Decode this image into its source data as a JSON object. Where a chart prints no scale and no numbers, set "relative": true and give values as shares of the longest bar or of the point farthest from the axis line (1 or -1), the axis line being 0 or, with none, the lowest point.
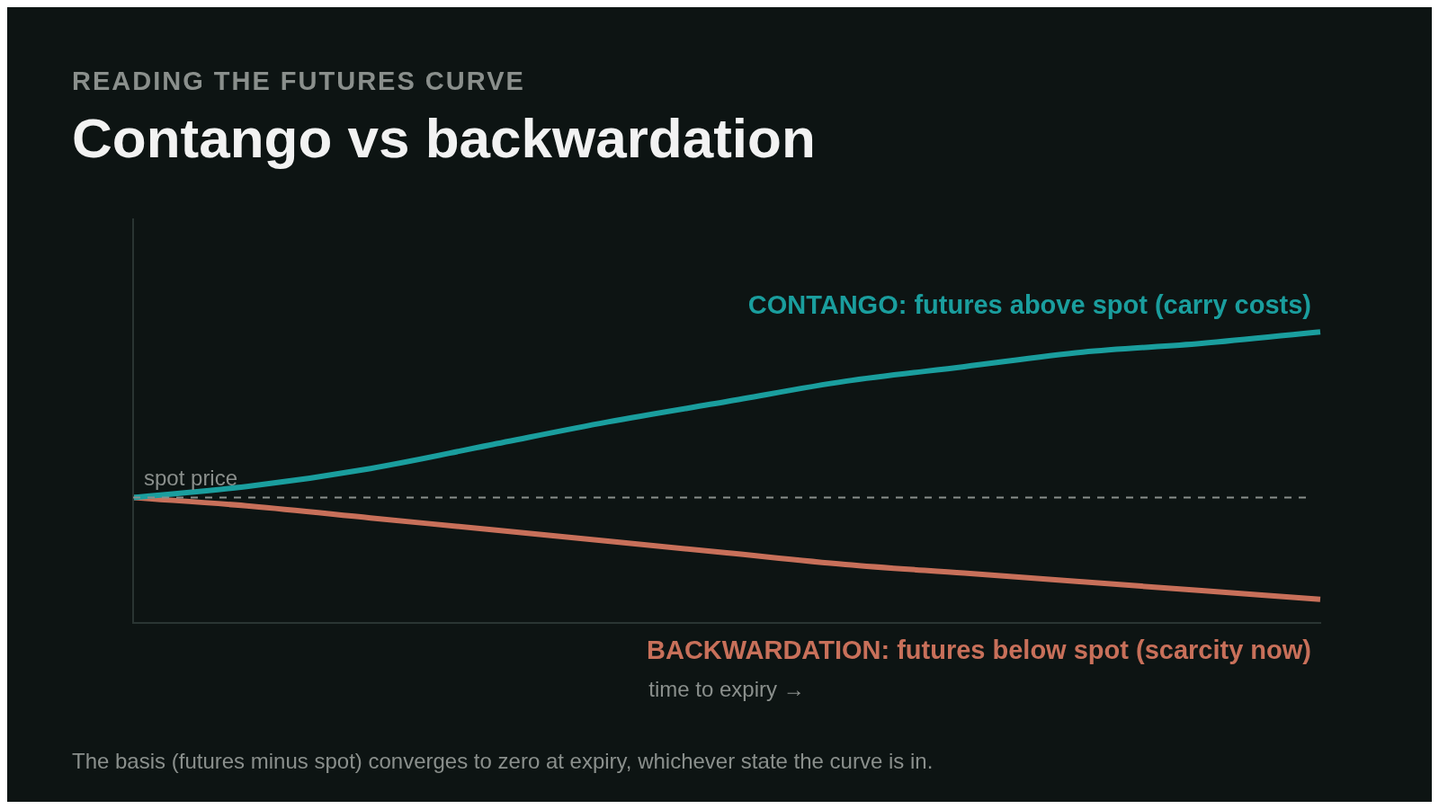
{
  "chart_data": {
    "type": "line",
    "subtitle": "READING THE FUTURES CURVE",
    "title": "Contango vs backwardation",
    "xlabel": "time to expiry →",
    "relative": true,
    "categories": [
      null,
      null,
      null,
      null,
      null,
      null,
      null,
      null,
      null,
      null,
      null
    ],
    "series": [
      {
        "name": "CONTANGO: futures above spot (carry costs)",
        "color": "#1a9e9e",
        "values": [
          0.43,
          0.47,
          0.53,
          0.61,
          0.69,
          0.76,
          0.83,
          0.88,
          0.93,
          0.96,
          1
        ]
      },
      {
        "name": "BACKWARDATION: futures below spot (scarcity now)",
        "color": "#c8705a",
        "values": [
          0.43,
          0.4,
          0.36,
          0.32,
          0.28,
          0.24,
          0.2,
          0.17,
          0.14,
          0.11,
          0.08
        ]
      }
    ],
    "ref_lines": [
      {
        "axis": "y",
        "value": 0.43,
        "label": "spot price",
        "color": "#8a8f8c",
        "line_style": "dashed"
      }
    ],
    "annotations": [
      "The basis (futures minus spot) converges to zero at expiry, whichever state the curve is in."
    ],
    "grid": false,
    "legend": false,
    "marker": "none",
    "line_style": "solid"
  }
}
